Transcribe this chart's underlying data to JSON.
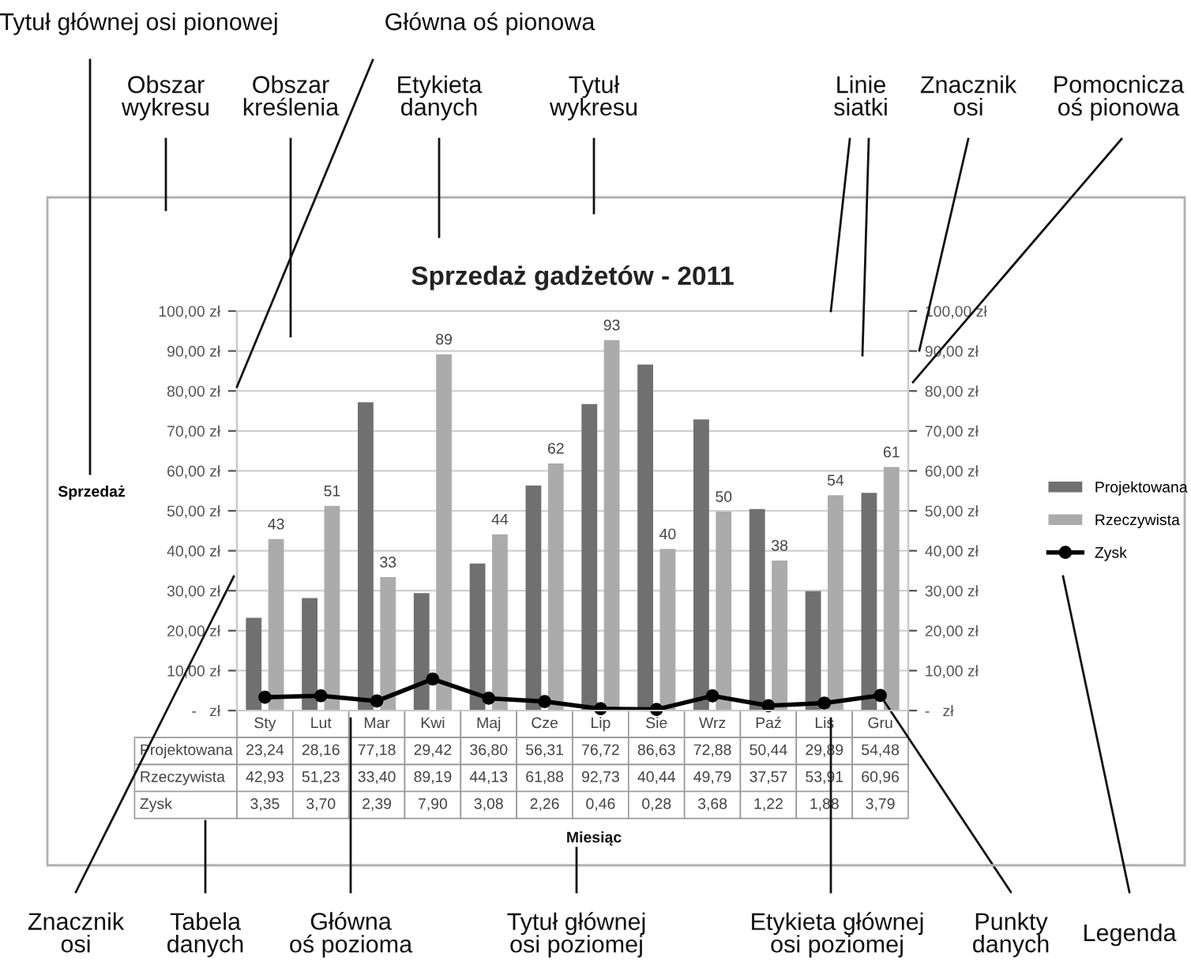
{
  "chart_data": {
    "type": "bar",
    "title": "Sprzedaż gadżetów - 2011",
    "ylabel": "Sprzedaż",
    "categories": [
      "Sty",
      "Lut",
      "Mar",
      "Kwi",
      "Maj",
      "Cze",
      "Lip",
      "Sie",
      "Wrz",
      "Paź",
      "Lis",
      "Gru"
    ],
    "series": [
      {
        "name": "Projektowana",
        "color": "#707070",
        "values": [
          23.24,
          28.16,
          77.18,
          29.42,
          36.8,
          56.31,
          76.72,
          86.63,
          72.88,
          50.44,
          29.89,
          54.48
        ],
        "value_labels": [
          "23,24",
          "28,16",
          "77,18",
          "29,42",
          "36,80",
          "56,31",
          "76,72",
          "86,63",
          "72,88",
          "50,44",
          "29,89",
          "54,48"
        ]
      },
      {
        "name": "Rzeczywista",
        "color": "#ababab",
        "values": [
          42.93,
          51.23,
          33.4,
          89.19,
          44.13,
          61.88,
          92.73,
          40.44,
          49.79,
          37.57,
          53.91,
          60.96
        ],
        "value_labels": [
          "42,93",
          "51,23",
          "33,40",
          "89,19",
          "44,13",
          "61,88",
          "92,73",
          "40,44",
          "49,79",
          "37,57",
          "53,91",
          "60,96"
        ]
      },
      {
        "name": "Zysk",
        "type": "line",
        "color": "#000000",
        "marker": "circle",
        "line_style": "solid",
        "values": [
          3.35,
          3.7,
          2.39,
          7.9,
          3.08,
          2.26,
          0.46,
          0.28,
          3.68,
          1.22,
          1.88,
          3.79
        ],
        "value_labels": [
          "3,35",
          "3,70",
          "2,39",
          "7,90",
          "3,08",
          "2,26",
          "0,46",
          "0,28",
          "3,68",
          "1,22",
          "1,88",
          "3,79"
        ]
      }
    ],
    "ylim": [
      0,
      100
    ],
    "yticks": [
      {
        "value": 0,
        "label": "-   zł"
      },
      {
        "value": 10,
        "label": "10,00 zł"
      },
      {
        "value": 20,
        "label": "20,00 zł"
      },
      {
        "value": 30,
        "label": "30,00 zł"
      },
      {
        "value": 40,
        "label": "40,00 zł"
      },
      {
        "value": 50,
        "label": "50,00 zł"
      },
      {
        "value": 60,
        "label": "60,00 zł"
      },
      {
        "value": 70,
        "label": "70,00 zł"
      },
      {
        "value": 80,
        "label": "80,00 zł"
      },
      {
        "value": 90,
        "label": "90,00 zł"
      },
      {
        "value": 100,
        "label": "100,00 zł"
      }
    ],
    "y2lim": [
      0,
      100
    ],
    "y2ticks": [
      {
        "value": 0,
        "label": "-   zł"
      },
      {
        "value": 10,
        "label": "10,00 zł"
      },
      {
        "value": 20,
        "label": "20,00 zł"
      },
      {
        "value": 30,
        "label": "30,00 zł"
      },
      {
        "value": 40,
        "label": "40,00 zł"
      },
      {
        "value": 50,
        "label": "50,00 zł"
      },
      {
        "value": 60,
        "label": "60,00 zł"
      },
      {
        "value": 70,
        "label": "70,00 zł"
      },
      {
        "value": 80,
        "label": "80,00 zł"
      },
      {
        "value": 90,
        "label": "90,00 zł"
      },
      {
        "value": 100,
        "label": "100,00 zł"
      }
    ],
    "grid": "y",
    "legend": "right",
    "annotations": [
      "Tytuł głównej osi pionowej",
      "Główna oś pionowa",
      "Obszar\nwykresu",
      "Obszar\nkreślenia",
      "Etykieta\ndanych",
      "Tytuł\nwykresu",
      "Linie\nsiatki",
      "Znacznik\nosi",
      "Pomocnicza\noś pionowa",
      "Znacznik\nosi",
      "Tabela\ndanych",
      "Główna\noś pozioma",
      "Tytuł głównej\nosi poziomej",
      "Etykieta głównej\nosi poziomej",
      {
        "text": "Punkty\ndanych",
        "x": "Gru",
        "y": 3.79
      },
      "Legenda",
      "Miesiąc",
      {
        "text": "43",
        "x": "Sty",
        "y": 42.93
      },
      {
        "text": "51",
        "x": "Lut",
        "y": 51.23
      },
      {
        "text": "33",
        "x": "Mar",
        "y": 33.4
      },
      {
        "text": "89",
        "x": "Kwi",
        "y": 89.19
      },
      {
        "text": "44",
        "x": "Maj",
        "y": 44.13
      },
      {
        "text": "62",
        "x": "Cze",
        "y": 61.88
      },
      {
        "text": "93",
        "x": "Lip",
        "y": 92.73
      },
      {
        "text": "40",
        "x": "Sie",
        "y": 40.44
      },
      {
        "text": "50",
        "x": "Wrz",
        "y": 49.79
      },
      {
        "text": "38",
        "x": "Paź",
        "y": 37.57
      },
      {
        "text": "54",
        "x": "Lis",
        "y": 53.91
      },
      {
        "text": "61",
        "x": "Gru",
        "y": 60.96
      }
    ]
  }
}
